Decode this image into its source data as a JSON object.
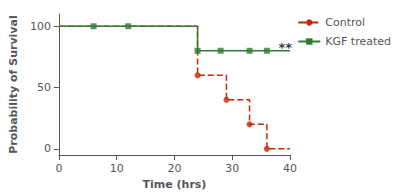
{
  "chart_data": {
    "type": "line",
    "xlabel": "Time (hrs)",
    "ylabel": "Probability of Survival",
    "series": [
      {
        "name": "Control",
        "color": "#cc2200",
        "line_style": "dashed",
        "marker": "circle",
        "x": [
          0,
          24,
          24,
          29,
          29,
          33,
          33,
          36,
          36,
          40
        ],
        "values": [
          100,
          100,
          60,
          60,
          40,
          40,
          20,
          20,
          0,
          0
        ],
        "marker_x": [
          24,
          29,
          33,
          36
        ],
        "marker_values": [
          60,
          40,
          20,
          0
        ]
      },
      {
        "name": "KGF treated",
        "color": "#2e7d32",
        "line_style": "solid",
        "marker": "square",
        "x": [
          0,
          6,
          6,
          12,
          12,
          24,
          24,
          40
        ],
        "values": [
          100,
          100,
          100,
          100,
          100,
          100,
          80,
          80
        ],
        "marker_x": [
          6,
          12,
          24,
          28,
          33,
          36
        ],
        "marker_values": [
          100,
          100,
          80,
          80,
          80,
          80
        ]
      }
    ],
    "annotations": [
      {
        "text": "**",
        "x": 37.5,
        "y": 83
      }
    ],
    "xlim": [
      0,
      40
    ],
    "ylim": [
      -5,
      110
    ],
    "xticks": [
      0,
      10,
      20,
      30,
      40
    ],
    "yticks": [
      0,
      50,
      100
    ],
    "grid": false,
    "legend": "upper right"
  }
}
